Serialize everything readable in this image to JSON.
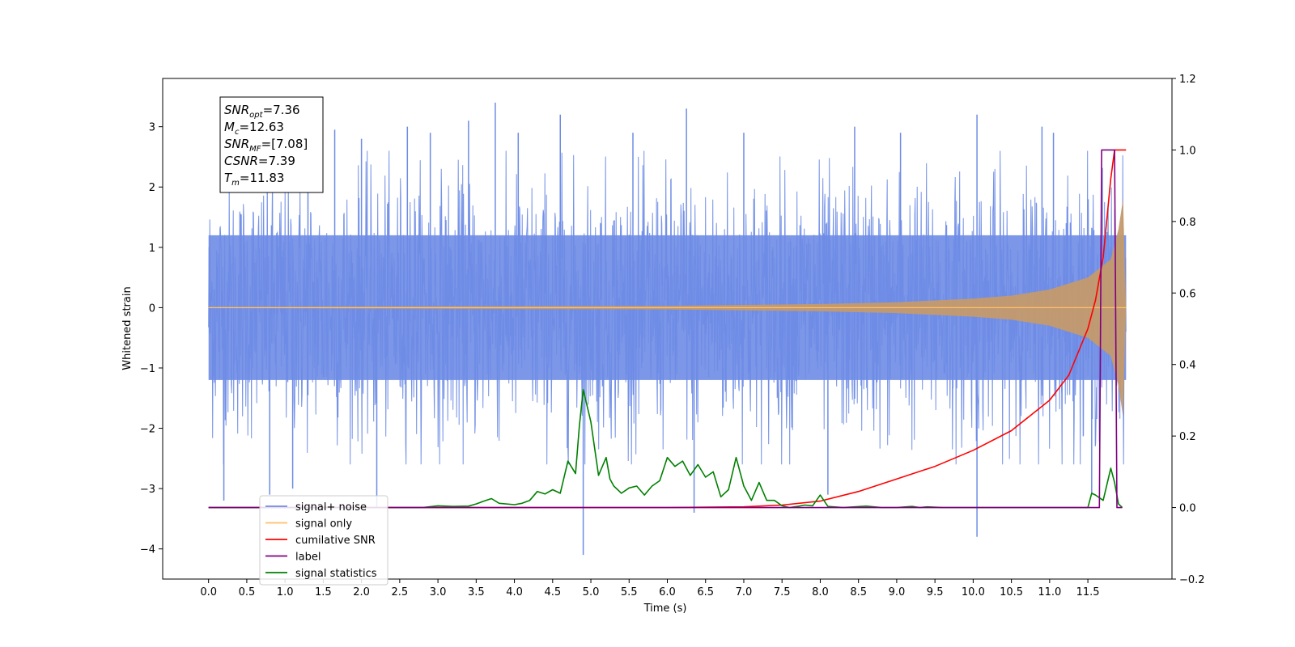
{
  "chart_data": {
    "type": "line",
    "xlabel": "Time (s)",
    "ylabel_left": "Whitened strain",
    "ylabel_right": "",
    "xlim": [
      -0.6,
      12.6
    ],
    "ylim_left": [
      -4.5,
      3.8
    ],
    "ylim_right": [
      -0.2,
      1.2
    ],
    "x_ticks": [
      0.0,
      0.5,
      1.0,
      1.5,
      2.0,
      2.5,
      3.0,
      3.5,
      4.0,
      4.5,
      5.0,
      5.5,
      6.0,
      6.5,
      7.0,
      7.5,
      8.0,
      8.5,
      9.0,
      9.5,
      10.0,
      10.5,
      11.0,
      11.5
    ],
    "x_tick_labels": [
      "0.0",
      "0.5",
      "1.0",
      "1.5",
      "2.0",
      "2.5",
      "3.0",
      "3.5",
      "4.0",
      "4.5",
      "5.0",
      "5.5",
      "6.0",
      "6.5",
      "7.0",
      "7.5",
      "8.0",
      "8.5",
      "9.0",
      "9.5",
      "10.0",
      "10.5",
      "11.0",
      "11.5"
    ],
    "y_ticks_left": [
      -4,
      -3,
      -2,
      -1,
      0,
      1,
      2,
      3
    ],
    "y_tick_labels_left": [
      "−4",
      "−3",
      "−2",
      "−1",
      "0",
      "1",
      "2",
      "3"
    ],
    "y_ticks_right": [
      -0.2,
      0.0,
      0.2,
      0.4,
      0.6,
      0.8,
      1.0,
      1.2
    ],
    "y_tick_labels_right": [
      "−0.2",
      "0.0",
      "0.2",
      "0.4",
      "0.6",
      "0.8",
      "1.0",
      "1.2"
    ],
    "grid": false,
    "legend_position": "lower-left",
    "annotation": {
      "lines": [
        {
          "sym": "SNR",
          "sub": "opt",
          "val": "=7.36"
        },
        {
          "sym": "M",
          "sub": "c",
          "val": "=12.63"
        },
        {
          "sym": "SNR",
          "sub": "MF",
          "val": "=[7.08]"
        },
        {
          "sym": "CSNR",
          "sub": "",
          "val": "=7.39"
        },
        {
          "sym": "T",
          "sub": "m",
          "val": "=11.83"
        }
      ]
    },
    "series": [
      {
        "name": "signal+ noise",
        "axis": "left",
        "color": "#6e8ce6",
        "kind": "noise-band",
        "x_range": [
          0.0,
          12.0
        ],
        "typical_amplitude": [
          -2.0,
          2.0
        ],
        "spikes": [
          [
            0.2,
            -3.2
          ],
          [
            0.8,
            -3.1
          ],
          [
            1.1,
            -3.0
          ],
          [
            1.3,
            2.9
          ],
          [
            1.65,
            2.95
          ],
          [
            2.0,
            2.8
          ],
          [
            2.2,
            -3.3
          ],
          [
            2.6,
            3.0
          ],
          [
            2.9,
            2.9
          ],
          [
            3.4,
            3.1
          ],
          [
            3.75,
            3.4
          ],
          [
            4.05,
            2.9
          ],
          [
            4.6,
            3.2
          ],
          [
            4.9,
            -4.1
          ],
          [
            5.55,
            2.9
          ],
          [
            6.25,
            3.3
          ],
          [
            6.35,
            -3.4
          ],
          [
            7.0,
            2.9
          ],
          [
            8.1,
            -3.1
          ],
          [
            8.45,
            3.0
          ],
          [
            9.05,
            2.9
          ],
          [
            10.05,
            3.2
          ],
          [
            10.05,
            -3.8
          ],
          [
            10.9,
            3.0
          ],
          [
            11.05,
            2.9
          ],
          [
            11.55,
            -3.1
          ]
        ]
      },
      {
        "name": "signal only",
        "axis": "left",
        "color": "#ffbf66",
        "kind": "chirp",
        "x_range": [
          0.0,
          12.0
        ],
        "envelope": [
          [
            0.0,
            0.01
          ],
          [
            6.0,
            0.03
          ],
          [
            8.0,
            0.06
          ],
          [
            9.0,
            0.09
          ],
          [
            10.0,
            0.15
          ],
          [
            10.5,
            0.2
          ],
          [
            11.0,
            0.3
          ],
          [
            11.5,
            0.5
          ],
          [
            11.8,
            0.8
          ],
          [
            11.9,
            1.3
          ],
          [
            11.96,
            1.8
          ],
          [
            12.0,
            0.0
          ]
        ]
      },
      {
        "name": "cumilative SNR",
        "axis": "right",
        "color": "#ff0000",
        "x": [
          0.0,
          6.0,
          7.0,
          7.5,
          8.0,
          8.5,
          9.0,
          9.5,
          10.0,
          10.5,
          11.0,
          11.25,
          11.5,
          11.6,
          11.7,
          11.8,
          11.85,
          11.9,
          12.0
        ],
        "y": [
          0.0,
          0.0,
          0.002,
          0.007,
          0.018,
          0.045,
          0.08,
          0.115,
          0.16,
          0.215,
          0.3,
          0.37,
          0.5,
          0.58,
          0.7,
          0.92,
          1.0,
          1.0,
          1.0
        ]
      },
      {
        "name": "label",
        "axis": "right",
        "color": "#7f007f",
        "x": [
          0.0,
          11.65,
          11.68,
          11.85,
          11.88,
          11.95
        ],
        "y": [
          0.0,
          0.0,
          1.0,
          1.0,
          0.0,
          0.0
        ]
      },
      {
        "name": "signal statistics",
        "axis": "right",
        "color": "#008000",
        "x": [
          0.0,
          2.8,
          3.0,
          3.2,
          3.4,
          3.5,
          3.6,
          3.7,
          3.8,
          4.0,
          4.1,
          4.2,
          4.3,
          4.4,
          4.5,
          4.6,
          4.7,
          4.8,
          4.85,
          4.9,
          5.0,
          5.1,
          5.2,
          5.25,
          5.3,
          5.4,
          5.5,
          5.6,
          5.7,
          5.8,
          5.9,
          6.0,
          6.1,
          6.2,
          6.3,
          6.4,
          6.5,
          6.6,
          6.7,
          6.8,
          6.9,
          7.0,
          7.1,
          7.2,
          7.3,
          7.4,
          7.5,
          7.6,
          7.7,
          7.8,
          7.9,
          8.0,
          8.1,
          8.3,
          8.6,
          8.7,
          8.8,
          9.0,
          9.2,
          9.3,
          9.4,
          9.6,
          11.5,
          11.55,
          11.6,
          11.7,
          11.8,
          11.85,
          11.9,
          11.95
        ],
        "y": [
          0.0,
          0.0,
          0.005,
          0.003,
          0.004,
          0.01,
          0.018,
          0.025,
          0.012,
          0.008,
          0.012,
          0.02,
          0.045,
          0.038,
          0.05,
          0.04,
          0.13,
          0.095,
          0.23,
          0.33,
          0.24,
          0.09,
          0.14,
          0.08,
          0.06,
          0.04,
          0.055,
          0.06,
          0.035,
          0.06,
          0.075,
          0.14,
          0.115,
          0.13,
          0.09,
          0.12,
          0.085,
          0.1,
          0.03,
          0.05,
          0.14,
          0.06,
          0.02,
          0.07,
          0.02,
          0.02,
          0.005,
          0.0,
          0.003,
          0.007,
          0.005,
          0.035,
          0.003,
          0.0,
          0.004,
          0.002,
          0.0,
          0.0,
          0.003,
          0.0,
          0.002,
          0.0,
          0.0,
          0.04,
          0.035,
          0.02,
          0.11,
          0.07,
          0.01,
          0.0
        ]
      }
    ],
    "legend": [
      "signal+ noise",
      "signal only",
      "cumilative SNR",
      "label",
      "signal statistics"
    ]
  }
}
